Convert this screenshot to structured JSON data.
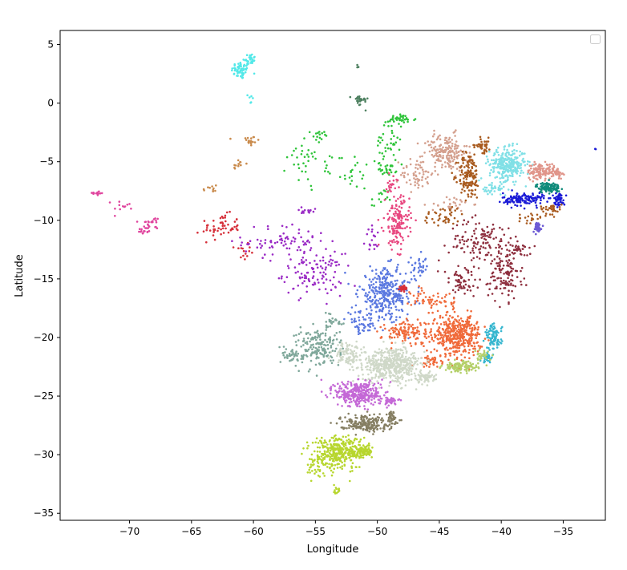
{
  "chart_data": {
    "type": "scatter",
    "title": "",
    "xlabel": "Longitude",
    "ylabel": "Latitude",
    "xlim": [
      -75.6,
      -31.6
    ],
    "ylim": [
      -35.6,
      6.2
    ],
    "xticks": [
      -70,
      -65,
      -60,
      -55,
      -50,
      -45,
      -40,
      -35
    ],
    "yticks": [
      5,
      0,
      -5,
      -10,
      -15,
      -20,
      -25,
      -30,
      -35
    ],
    "xtick_labels": [
      "−70",
      "−65",
      "−60",
      "−55",
      "−50",
      "−45",
      "−40",
      "−35"
    ],
    "ytick_labels": [
      "5",
      "0",
      "−5",
      "−10",
      "−15",
      "−20",
      "−25",
      "−30",
      "−35"
    ],
    "grid": false,
    "legend": {
      "placement": "top-right",
      "entries": []
    },
    "marker_size": 1.3,
    "clusters": [
      {
        "color": "#52e8e8",
        "n": 60,
        "center": [
          -61.0,
          2.8
        ],
        "spread": [
          0.7,
          0.7
        ]
      },
      {
        "color": "#52e8e8",
        "n": 25,
        "center": [
          -60.3,
          3.8
        ],
        "spread": [
          0.5,
          0.4
        ]
      },
      {
        "color": "#52e8e8",
        "n": 6,
        "center": [
          -60.2,
          0.3
        ],
        "spread": [
          0.2,
          0.6
        ]
      },
      {
        "color": "#c98a4b",
        "n": 18,
        "center": [
          -60.3,
          -3.2
        ],
        "spread": [
          0.7,
          0.6
        ]
      },
      {
        "color": "#c98a4b",
        "n": 12,
        "center": [
          -61.2,
          -5.2
        ],
        "spread": [
          0.5,
          0.4
        ]
      },
      {
        "color": "#c98a4b",
        "n": 10,
        "center": [
          -63.5,
          -7.4
        ],
        "spread": [
          0.6,
          0.5
        ]
      },
      {
        "color": "#e0459e",
        "n": 20,
        "center": [
          -68.2,
          -10.2
        ],
        "spread": [
          1.0,
          0.5
        ]
      },
      {
        "color": "#e0459e",
        "n": 15,
        "center": [
          -68.8,
          -10.9
        ],
        "spread": [
          0.5,
          0.3
        ]
      },
      {
        "color": "#e0459e",
        "n": 12,
        "center": [
          -72.6,
          -7.7
        ],
        "spread": [
          0.5,
          0.2
        ]
      },
      {
        "color": "#e0459e",
        "n": 12,
        "center": [
          -70.5,
          -8.7
        ],
        "spread": [
          0.8,
          0.4
        ]
      },
      {
        "color": "#d6303a",
        "n": 55,
        "center": [
          -62.6,
          -10.6
        ],
        "spread": [
          1.4,
          1.0
        ]
      },
      {
        "color": "#d6303a",
        "n": 14,
        "center": [
          -60.9,
          -12.7
        ],
        "spread": [
          0.6,
          0.6
        ]
      },
      {
        "color": "#9a2bc5",
        "n": 80,
        "center": [
          -57.3,
          -11.8
        ],
        "spread": [
          3.2,
          1.3
        ]
      },
      {
        "color": "#9a2bc5",
        "n": 110,
        "center": [
          -55.2,
          -14.6
        ],
        "spread": [
          2.2,
          1.6
        ]
      },
      {
        "color": "#9a2bc5",
        "n": 18,
        "center": [
          -50.3,
          -11.6
        ],
        "spread": [
          0.6,
          1.0
        ]
      },
      {
        "color": "#9a2bc5",
        "n": 14,
        "center": [
          -55.6,
          -9.2
        ],
        "spread": [
          1.4,
          0.3
        ]
      },
      {
        "color": "#2fc43a",
        "n": 40,
        "center": [
          -48.1,
          -1.4
        ],
        "spread": [
          1.1,
          0.4
        ]
      },
      {
        "color": "#2fc43a",
        "n": 30,
        "center": [
          -49.2,
          -5.6
        ],
        "spread": [
          0.7,
          0.5
        ]
      },
      {
        "color": "#2fc43a",
        "n": 35,
        "center": [
          -49.2,
          -3.5
        ],
        "spread": [
          0.9,
          1.4
        ]
      },
      {
        "color": "#2fc43a",
        "n": 40,
        "center": [
          -55.5,
          -4.5
        ],
        "spread": [
          1.6,
          2.4
        ]
      },
      {
        "color": "#2fc43a",
        "n": 10,
        "center": [
          -54.6,
          -2.7
        ],
        "spread": [
          0.4,
          0.3
        ]
      },
      {
        "color": "#2fc43a",
        "n": 25,
        "center": [
          -52.0,
          -5.8
        ],
        "spread": [
          1.6,
          1.4
        ]
      },
      {
        "color": "#2fc43a",
        "n": 14,
        "center": [
          -49.8,
          -8.3
        ],
        "spread": [
          0.6,
          0.9
        ]
      },
      {
        "color": "#4e8060",
        "n": 25,
        "center": [
          -51.4,
          0.2
        ],
        "spread": [
          0.6,
          0.5
        ]
      },
      {
        "color": "#4e8060",
        "n": 4,
        "center": [
          -51.6,
          3.1
        ],
        "spread": [
          0.1,
          0.2
        ]
      },
      {
        "color": "#d4a08e",
        "n": 180,
        "center": [
          -44.5,
          -4.2
        ],
        "spread": [
          1.6,
          1.4
        ]
      },
      {
        "color": "#d4a08e",
        "n": 60,
        "center": [
          -46.8,
          -6.0
        ],
        "spread": [
          1.2,
          1.3
        ]
      },
      {
        "color": "#d4a08e",
        "n": 30,
        "center": [
          -44.0,
          -8.6
        ],
        "spread": [
          1.5,
          0.6
        ]
      },
      {
        "color": "#a85a1e",
        "n": 140,
        "center": [
          -42.6,
          -6.2
        ],
        "spread": [
          0.8,
          1.8
        ]
      },
      {
        "color": "#a85a1e",
        "n": 40,
        "center": [
          -44.6,
          -9.6
        ],
        "spread": [
          1.6,
          0.8
        ]
      },
      {
        "color": "#a85a1e",
        "n": 40,
        "center": [
          -41.5,
          -3.6
        ],
        "spread": [
          0.6,
          0.6
        ]
      },
      {
        "color": "#a85a1e",
        "n": 35,
        "center": [
          -36.0,
          -9.0
        ],
        "spread": [
          0.8,
          0.4
        ]
      },
      {
        "color": "#a85a1e",
        "n": 20,
        "center": [
          -37.5,
          -9.8
        ],
        "spread": [
          1.0,
          0.4
        ]
      },
      {
        "color": "#80e0e6",
        "n": 300,
        "center": [
          -39.5,
          -5.2
        ],
        "spread": [
          1.3,
          1.2
        ]
      },
      {
        "color": "#80e0e6",
        "n": 40,
        "center": [
          -40.5,
          -7.4
        ],
        "spread": [
          1.0,
          0.5
        ]
      },
      {
        "color": "#e0958a",
        "n": 120,
        "center": [
          -36.8,
          -5.8
        ],
        "spread": [
          1.0,
          0.6
        ]
      },
      {
        "color": "#e0958a",
        "n": 40,
        "center": [
          -35.5,
          -5.9
        ],
        "spread": [
          0.4,
          0.4
        ]
      },
      {
        "color": "#0f8a7a",
        "n": 110,
        "center": [
          -36.2,
          -7.2
        ],
        "spread": [
          0.9,
          0.4
        ]
      },
      {
        "color": "#1a1ad6",
        "n": 140,
        "center": [
          -38.2,
          -8.2
        ],
        "spread": [
          1.5,
          0.5
        ]
      },
      {
        "color": "#1a1ad6",
        "n": 50,
        "center": [
          -35.3,
          -8.2
        ],
        "spread": [
          0.4,
          0.5
        ]
      },
      {
        "color": "#1a1ad6",
        "n": 2,
        "center": [
          -32.4,
          -3.9
        ],
        "spread": [
          0.05,
          0.05
        ]
      },
      {
        "color": "#6c5ad4",
        "n": 50,
        "center": [
          -37.1,
          -10.6
        ],
        "spread": [
          0.3,
          0.4
        ]
      },
      {
        "color": "#8e2f3e",
        "n": 130,
        "center": [
          -41.5,
          -11.8
        ],
        "spread": [
          2.4,
          1.7
        ]
      },
      {
        "color": "#8e2f3e",
        "n": 120,
        "center": [
          -39.7,
          -14.6
        ],
        "spread": [
          1.2,
          2.0
        ]
      },
      {
        "color": "#8e2f3e",
        "n": 60,
        "center": [
          -43.2,
          -15.4
        ],
        "spread": [
          1.6,
          1.2
        ]
      },
      {
        "color": "#8e2f3e",
        "n": 30,
        "center": [
          -38.5,
          -12.5
        ],
        "spread": [
          0.6,
          0.5
        ]
      },
      {
        "color": "#e84880",
        "n": 150,
        "center": [
          -48.4,
          -10.2
        ],
        "spread": [
          0.9,
          2.0
        ]
      },
      {
        "color": "#e84880",
        "n": 20,
        "center": [
          -48.8,
          -6.8
        ],
        "spread": [
          0.6,
          0.7
        ]
      },
      {
        "color": "#5a78e0",
        "n": 320,
        "center": [
          -49.3,
          -16.3
        ],
        "spread": [
          2.0,
          2.0
        ]
      },
      {
        "color": "#5a78e0",
        "n": 50,
        "center": [
          -51.3,
          -18.8
        ],
        "spread": [
          1.1,
          0.9
        ]
      },
      {
        "color": "#5a78e0",
        "n": 30,
        "center": [
          -46.6,
          -14.0
        ],
        "spread": [
          0.6,
          0.8
        ]
      },
      {
        "color": "#d6303a",
        "n": 40,
        "center": [
          -47.9,
          -15.8
        ],
        "spread": [
          0.3,
          0.2
        ]
      },
      {
        "color": "#f06a3a",
        "n": 420,
        "center": [
          -43.6,
          -19.8
        ],
        "spread": [
          1.8,
          1.5
        ]
      },
      {
        "color": "#f06a3a",
        "n": 120,
        "center": [
          -47.6,
          -19.6
        ],
        "spread": [
          1.8,
          0.9
        ]
      },
      {
        "color": "#f06a3a",
        "n": 60,
        "center": [
          -45.5,
          -16.8
        ],
        "spread": [
          1.6,
          1.1
        ]
      },
      {
        "color": "#f06a3a",
        "n": 40,
        "center": [
          -45.6,
          -22.0
        ],
        "spread": [
          0.8,
          0.5
        ]
      },
      {
        "color": "#36b6cf",
        "n": 90,
        "center": [
          -40.6,
          -20.0
        ],
        "spread": [
          0.6,
          1.0
        ]
      },
      {
        "color": "#36b6cf",
        "n": 30,
        "center": [
          -41.1,
          -21.7
        ],
        "spread": [
          0.4,
          0.4
        ]
      },
      {
        "color": "#b4d06a",
        "n": 110,
        "center": [
          -43.3,
          -22.5
        ],
        "spread": [
          1.3,
          0.4
        ]
      },
      {
        "color": "#b4d06a",
        "n": 30,
        "center": [
          -41.6,
          -21.6
        ],
        "spread": [
          0.5,
          0.4
        ]
      },
      {
        "color": "#cfd8c8",
        "n": 480,
        "center": [
          -48.8,
          -22.3
        ],
        "spread": [
          2.2,
          1.3
        ]
      },
      {
        "color": "#cfd8c8",
        "n": 100,
        "center": [
          -52.3,
          -21.4
        ],
        "spread": [
          1.0,
          0.9
        ]
      },
      {
        "color": "#cfd8c8",
        "n": 60,
        "center": [
          -46.2,
          -23.4
        ],
        "spread": [
          0.8,
          0.4
        ]
      },
      {
        "color": "#7fa79a",
        "n": 180,
        "center": [
          -54.8,
          -20.8
        ],
        "spread": [
          1.6,
          1.6
        ]
      },
      {
        "color": "#7fa79a",
        "n": 40,
        "center": [
          -56.8,
          -21.6
        ],
        "spread": [
          0.8,
          0.7
        ]
      },
      {
        "color": "#7fa79a",
        "n": 20,
        "center": [
          -53.3,
          -18.6
        ],
        "spread": [
          0.6,
          0.5
        ]
      },
      {
        "color": "#c468d6",
        "n": 330,
        "center": [
          -51.5,
          -24.8
        ],
        "spread": [
          1.7,
          1.0
        ]
      },
      {
        "color": "#c468d6",
        "n": 40,
        "center": [
          -49.0,
          -25.4
        ],
        "spread": [
          0.6,
          0.3
        ]
      },
      {
        "color": "#857e62",
        "n": 200,
        "center": [
          -51.0,
          -27.3
        ],
        "spread": [
          1.8,
          0.6
        ]
      },
      {
        "color": "#857e62",
        "n": 40,
        "center": [
          -48.9,
          -26.8
        ],
        "spread": [
          0.3,
          0.6
        ]
      },
      {
        "color": "#b7d62e",
        "n": 320,
        "center": [
          -53.2,
          -29.8
        ],
        "spread": [
          1.8,
          1.3
        ]
      },
      {
        "color": "#b7d62e",
        "n": 100,
        "center": [
          -51.3,
          -29.7
        ],
        "spread": [
          0.8,
          0.5
        ]
      },
      {
        "color": "#b7d62e",
        "n": 40,
        "center": [
          -55.0,
          -31.0
        ],
        "spread": [
          0.8,
          1.1
        ]
      },
      {
        "color": "#b7d62e",
        "n": 14,
        "center": [
          -53.3,
          -32.9
        ],
        "spread": [
          0.3,
          0.5
        ]
      }
    ]
  }
}
